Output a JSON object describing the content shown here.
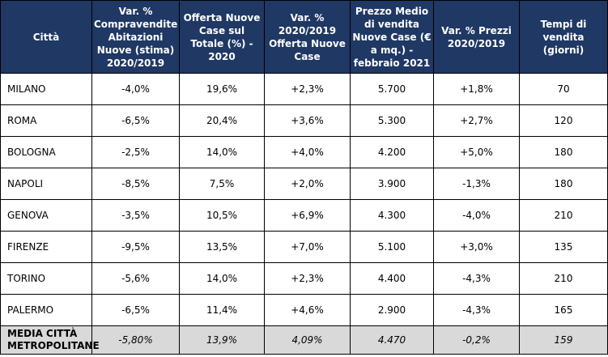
{
  "headers": [
    "Città",
    "Var. % Compravendite Abitazioni Nuove (stima) 2020/2019",
    "Offerta Nuove Case sul Totale (%) - 2020",
    "Var. % 2020/2019 Offerta Nuove Case",
    "Prezzo Medio di vendita Nuove Case (€ a mq.) - febbraio 2021",
    "Var. % Prezzi 2020/2019",
    "Tempi di vendita (giorni)"
  ],
  "rows": [
    {
      "city": "MILANO",
      "compravendite": "-4,0%",
      "offerta": "19,6%",
      "var_offerta": "+2,3%",
      "prezzo": "5.700",
      "var_prezzi": "+1,8%",
      "tempi": "70"
    },
    {
      "city": "ROMA",
      "compravendite": "-6,5%",
      "offerta": "20,4%",
      "var_offerta": "+3,6%",
      "prezzo": "5.300",
      "var_prezzi": "+2,7%",
      "tempi": "120"
    },
    {
      "city": "BOLOGNA",
      "compravendite": "-2,5%",
      "offerta": "14,0%",
      "var_offerta": "+4,0%",
      "prezzo": "4.200",
      "var_prezzi": "+5,0%",
      "tempi": "180"
    },
    {
      "city": "NAPOLI",
      "compravendite": "-8,5%",
      "offerta": "7,5%",
      "var_offerta": "+2,0%",
      "prezzo": "3.900",
      "var_prezzi": "-1,3%",
      "tempi": "180"
    },
    {
      "city": "GENOVA",
      "compravendite": "-3,5%",
      "offerta": "10,5%",
      "var_offerta": "+6,9%",
      "prezzo": "4.300",
      "var_prezzi": "-4,0%",
      "tempi": "210"
    },
    {
      "city": "FIRENZE",
      "compravendite": "-9,5%",
      "offerta": "13,5%",
      "var_offerta": "+7,0%",
      "prezzo": "5.100",
      "var_prezzi": "+3,0%",
      "tempi": "135"
    },
    {
      "city": "TORINO",
      "compravendite": "-5,6%",
      "offerta": "14,0%",
      "var_offerta": "+2,3%",
      "prezzo": "4.400",
      "var_prezzi": "-4,3%",
      "tempi": "210"
    },
    {
      "city": "PALERMO",
      "compravendite": "-6,5%",
      "offerta": "11,4%",
      "var_offerta": "+4,6%",
      "prezzo": "2.900",
      "var_prezzi": "-4,3%",
      "tempi": "165"
    }
  ],
  "average": {
    "city": "MEDIA CITTÀ METROPOLITANE",
    "compravendite": "-5,80%",
    "offerta": "13,9%",
    "var_offerta": "4,09%",
    "prezzo": "4.470",
    "var_prezzi": "-0,2%",
    "tempi": "159"
  },
  "colors": {
    "header_bg": "#1f3864",
    "header_text": "#ffffff",
    "average_bg": "#d9d9d9",
    "border": "#000000"
  }
}
